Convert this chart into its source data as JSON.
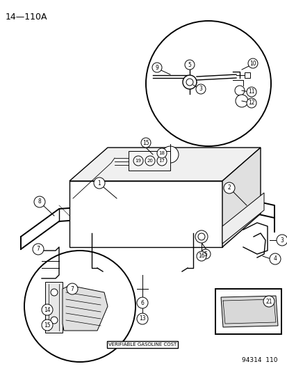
{
  "title": "14—110A",
  "fig_number": "94314  110",
  "bg": "#ffffff",
  "lc": "#000000",
  "label_text": "VERIFIABLE GASOLINE COST",
  "layout": {
    "fig_w": 4.14,
    "fig_h": 5.33,
    "dpi": 100
  },
  "callout_r": 0.013,
  "callout_fontsize": 5.5
}
